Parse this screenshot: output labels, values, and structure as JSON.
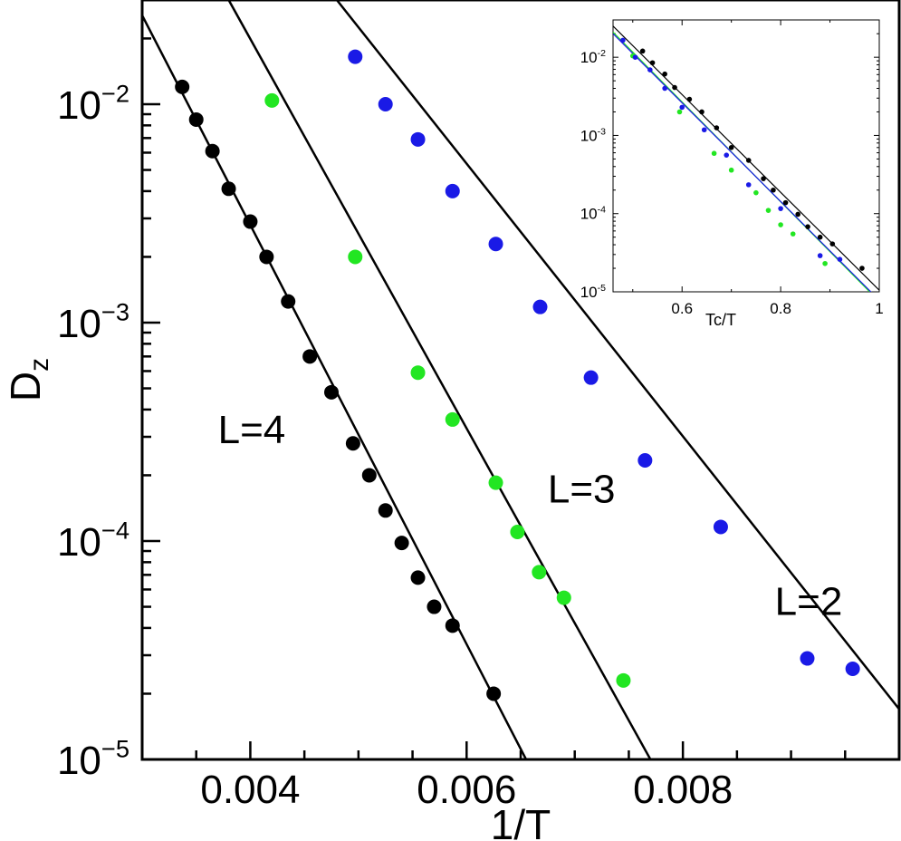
{
  "chart_data": [
    {
      "type": "scatter",
      "xlabel": "1/T",
      "ylabel": "D",
      "ylabel_subscript": "z",
      "xlim": [
        0.003,
        0.01
      ],
      "ylim": [
        1e-05,
        0.03
      ],
      "yscale": "log",
      "grid": false,
      "x_ticks": [
        {
          "value": 0.004,
          "label": "0.004"
        },
        {
          "value": 0.006,
          "label": "0.006"
        },
        {
          "value": 0.008,
          "label": "0.008"
        }
      ],
      "y_ticks": [
        {
          "value": 0.01,
          "base": "10",
          "exp": "−2"
        },
        {
          "value": 0.001,
          "base": "10",
          "exp": "−3"
        },
        {
          "value": 0.0001,
          "base": "10",
          "exp": "−4"
        },
        {
          "value": 1e-05,
          "base": "10",
          "exp": "−5"
        }
      ],
      "series": [
        {
          "name": "L=4",
          "color": "#000000",
          "label": {
            "x": 0.0037,
            "y": 0.00028
          },
          "points": [
            [
              0.00337,
              0.012
            ],
            [
              0.0035,
              0.0085
            ],
            [
              0.00365,
              0.0061
            ],
            [
              0.0038,
              0.0041
            ],
            [
              0.004,
              0.0029
            ],
            [
              0.00415,
              0.002
            ],
            [
              0.00435,
              0.00125
            ],
            [
              0.00455,
              0.0007
            ],
            [
              0.00475,
              0.00048
            ],
            [
              0.00495,
              0.00028
            ],
            [
              0.0051,
              0.0002
            ],
            [
              0.00525,
              0.000138
            ],
            [
              0.0054,
              9.8e-05
            ],
            [
              0.00555,
              6.8e-05
            ],
            [
              0.0057,
              5e-05
            ],
            [
              0.00587,
              4.1e-05
            ],
            [
              0.00625,
              2e-05
            ]
          ],
          "fit_line": [
            [
              0.003,
              0.0255
            ],
            [
              0.00655,
              1e-05
            ]
          ]
        },
        {
          "name": "L=3",
          "color": "#22e622",
          "label": {
            "x": 0.00675,
            "y": 0.00015
          },
          "points": [
            [
              0.0042,
              0.0104
            ],
            [
              0.00497,
              0.002
            ],
            [
              0.00555,
              0.00059
            ],
            [
              0.00587,
              0.00036
            ],
            [
              0.00627,
              0.000185
            ],
            [
              0.00647,
              0.00011
            ],
            [
              0.00667,
              7.2e-05
            ],
            [
              0.0069,
              5.5e-05
            ],
            [
              0.00745,
              2.3e-05
            ]
          ],
          "fit_line": [
            [
              0.0038,
              0.03
            ],
            [
              0.0077,
              1e-05
            ]
          ]
        },
        {
          "name": "L=2",
          "color": "#1a1ae6",
          "label": {
            "x": 0.00885,
            "y": 4.6e-05
          },
          "points": [
            [
              0.00497,
              0.0165
            ],
            [
              0.00525,
              0.01
            ],
            [
              0.00555,
              0.0069
            ],
            [
              0.00587,
              0.004
            ],
            [
              0.00627,
              0.00229
            ],
            [
              0.00668,
              0.00118
            ],
            [
              0.00715,
              0.00056
            ],
            [
              0.00765,
              0.000234
            ],
            [
              0.00835,
              0.000116
            ],
            [
              0.00915,
              2.9e-05
            ],
            [
              0.00957,
              2.6e-05
            ]
          ],
          "fit_line": [
            [
              0.0048,
              0.03
            ],
            [
              0.01,
              1.7e-05
            ]
          ]
        }
      ]
    },
    {
      "type": "scatter",
      "role": "inset",
      "xlabel": "Tc/T",
      "ylabel": "",
      "xlim": [
        0.46,
        1.0
      ],
      "ylim": [
        1e-05,
        0.03
      ],
      "yscale": "log",
      "grid": false,
      "x_ticks": [
        {
          "value": 0.6,
          "label": "0.6"
        },
        {
          "value": 0.8,
          "label": "0.8"
        },
        {
          "value": 1.0,
          "label": "1"
        }
      ],
      "y_ticks": [
        {
          "value": 0.01,
          "base": "10",
          "exp": "-2"
        },
        {
          "value": 0.001,
          "base": "10",
          "exp": "-3"
        },
        {
          "value": 0.0001,
          "base": "10",
          "exp": "-4"
        },
        {
          "value": 1e-05,
          "base": "10",
          "exp": "-5"
        }
      ],
      "series": [
        {
          "color": "#000000",
          "points": [
            [
              0.52,
              0.012
            ],
            [
              0.54,
              0.0085
            ],
            [
              0.565,
              0.0061
            ],
            [
              0.585,
              0.0041
            ],
            [
              0.615,
              0.0029
            ],
            [
              0.64,
              0.002
            ],
            [
              0.67,
              0.00125
            ],
            [
              0.7,
              0.0007
            ],
            [
              0.735,
              0.00048
            ],
            [
              0.765,
              0.00028
            ],
            [
              0.785,
              0.0002
            ],
            [
              0.81,
              0.000138
            ],
            [
              0.835,
              9.8e-05
            ],
            [
              0.855,
              6.8e-05
            ],
            [
              0.88,
              5e-05
            ],
            [
              0.905,
              4.1e-05
            ],
            [
              0.965,
              2e-05
            ]
          ],
          "fit_line": [
            [
              0.46,
              0.025
            ],
            [
              1.0,
              1.05e-05
            ]
          ]
        },
        {
          "color": "#22e622",
          "points": [
            [
              0.5,
              0.0104
            ],
            [
              0.595,
              0.002
            ],
            [
              0.665,
              0.00059
            ],
            [
              0.7,
              0.00036
            ],
            [
              0.75,
              0.000185
            ],
            [
              0.775,
              0.00011
            ],
            [
              0.8,
              7.2e-05
            ],
            [
              0.825,
              5.5e-05
            ],
            [
              0.89,
              2.3e-05
            ]
          ],
          "fit_line": [
            [
              0.46,
              0.021
            ],
            [
              1.0,
              7.5e-06
            ]
          ]
        },
        {
          "color": "#1a1ae6",
          "points": [
            [
              0.48,
              0.0165
            ],
            [
              0.505,
              0.01
            ],
            [
              0.535,
              0.0069
            ],
            [
              0.565,
              0.004
            ],
            [
              0.6,
              0.00229
            ],
            [
              0.645,
              0.00118
            ],
            [
              0.69,
              0.00056
            ],
            [
              0.735,
              0.000234
            ],
            [
              0.8,
              0.000116
            ],
            [
              0.88,
              2.9e-05
            ],
            [
              0.92,
              2.6e-05
            ]
          ],
          "fit_line": [
            [
              0.46,
              0.02
            ],
            [
              1.0,
              7.8e-06
            ]
          ]
        }
      ]
    }
  ]
}
